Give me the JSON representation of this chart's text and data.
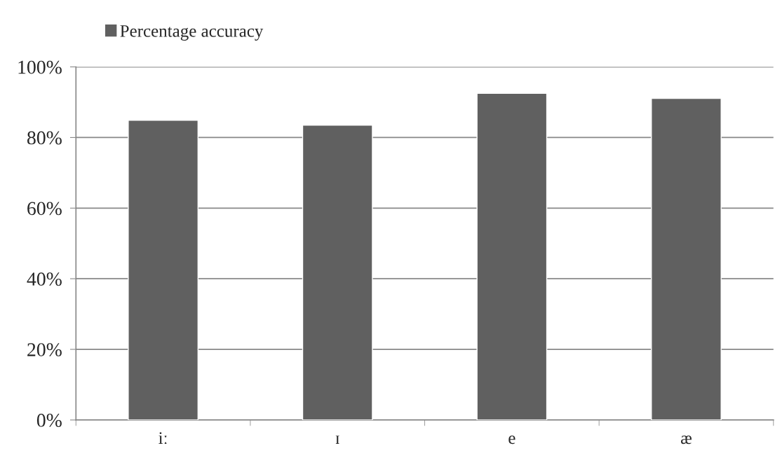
{
  "chart_data": {
    "type": "bar",
    "categories": [
      "iː",
      "ɪ",
      "e",
      "æ"
    ],
    "series": [
      {
        "name": "Percentage accuracy",
        "color": "#606060",
        "values": [
          84.9,
          83.5,
          92.5,
          91.1
        ]
      }
    ],
    "ylim": [
      0,
      100
    ],
    "yticks": [
      {
        "value": 0,
        "label": "0%"
      },
      {
        "value": 20,
        "label": "20%"
      },
      {
        "value": 40,
        "label": "40%"
      },
      {
        "value": 60,
        "label": "60%"
      },
      {
        "value": 80,
        "label": "80%"
      },
      {
        "value": 100,
        "label": "100%"
      }
    ],
    "grid": "y",
    "legend": "top left"
  }
}
